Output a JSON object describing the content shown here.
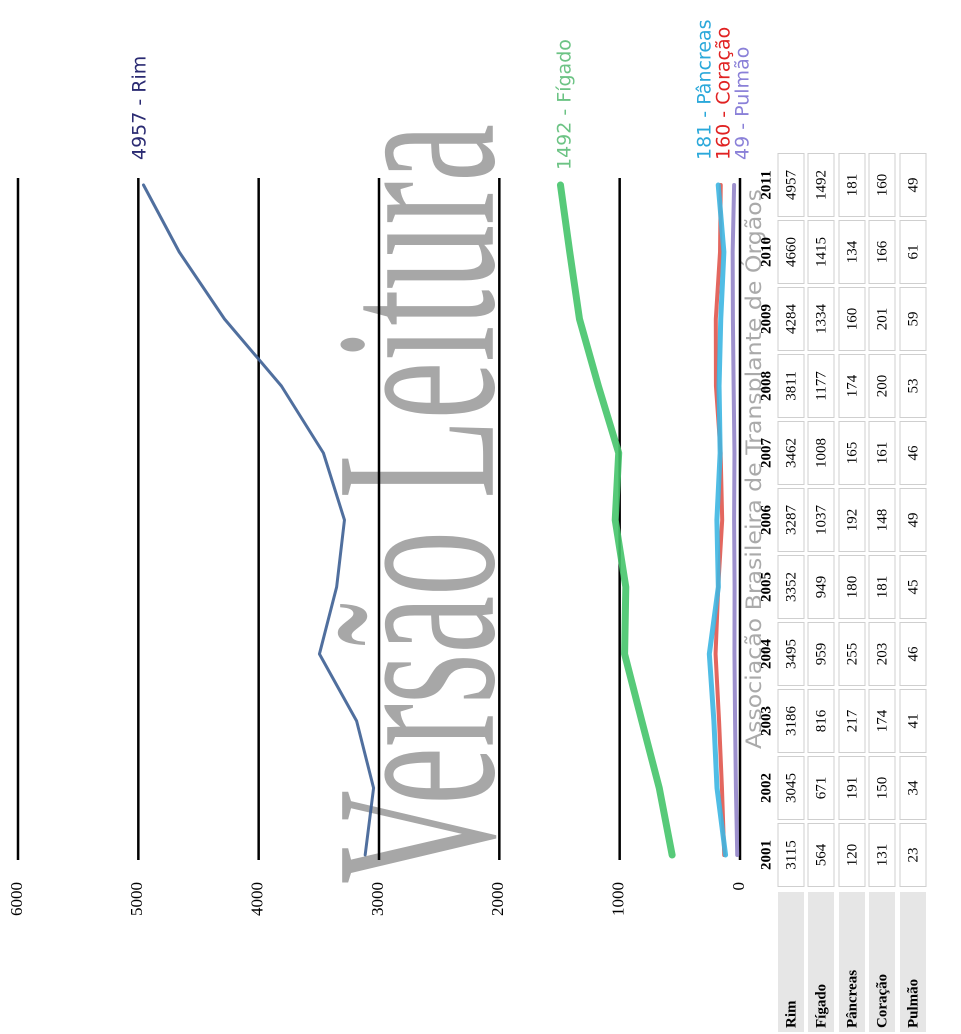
{
  "chart_data": {
    "type": "line",
    "watermark": "Versão Leitura",
    "source_note": "Associação Brasileira de Transplante de Órgãos",
    "categories": [
      "2001",
      "2002",
      "2003",
      "2004",
      "2005",
      "2006",
      "2007",
      "2008",
      "2009",
      "2010",
      "2011"
    ],
    "ylim": [
      0,
      6000
    ],
    "yticks": [
      0,
      1000,
      2000,
      3000,
      4000,
      5000,
      6000
    ],
    "grid": true,
    "series": [
      {
        "name": "Rim",
        "color": "#3d5f94",
        "label_color": "#2a2a72",
        "end_label": "4957 - Rim",
        "values": [
          3115,
          3045,
          3186,
          3495,
          3352,
          3287,
          3462,
          3811,
          4284,
          4660,
          4957
        ]
      },
      {
        "name": "Fígado",
        "color": "#45c46a",
        "label_color": "#6cc384",
        "end_label": "1492 - Fígado",
        "values": [
          564,
          671,
          816,
          959,
          949,
          1037,
          1008,
          1177,
          1334,
          1415,
          1492
        ]
      },
      {
        "name": "Pâncreas",
        "color": "#3db6e2",
        "label_color": "#2aa8da",
        "end_label": "181 - Pâncreas",
        "values": [
          120,
          191,
          217,
          255,
          180,
          192,
          165,
          174,
          160,
          134,
          181
        ]
      },
      {
        "name": "Coração",
        "color": "#e0564e",
        "label_color": "#e02222",
        "end_label": "160 - Coração",
        "values": [
          131,
          150,
          174,
          203,
          181,
          148,
          161,
          200,
          201,
          166,
          160
        ]
      },
      {
        "name": "Pulmão",
        "color": "#9284c8",
        "label_color": "#8a80d8",
        "end_label": "49 - Pulmão",
        "values": [
          23,
          34,
          41,
          46,
          45,
          49,
          46,
          53,
          59,
          61,
          49
        ]
      }
    ]
  }
}
